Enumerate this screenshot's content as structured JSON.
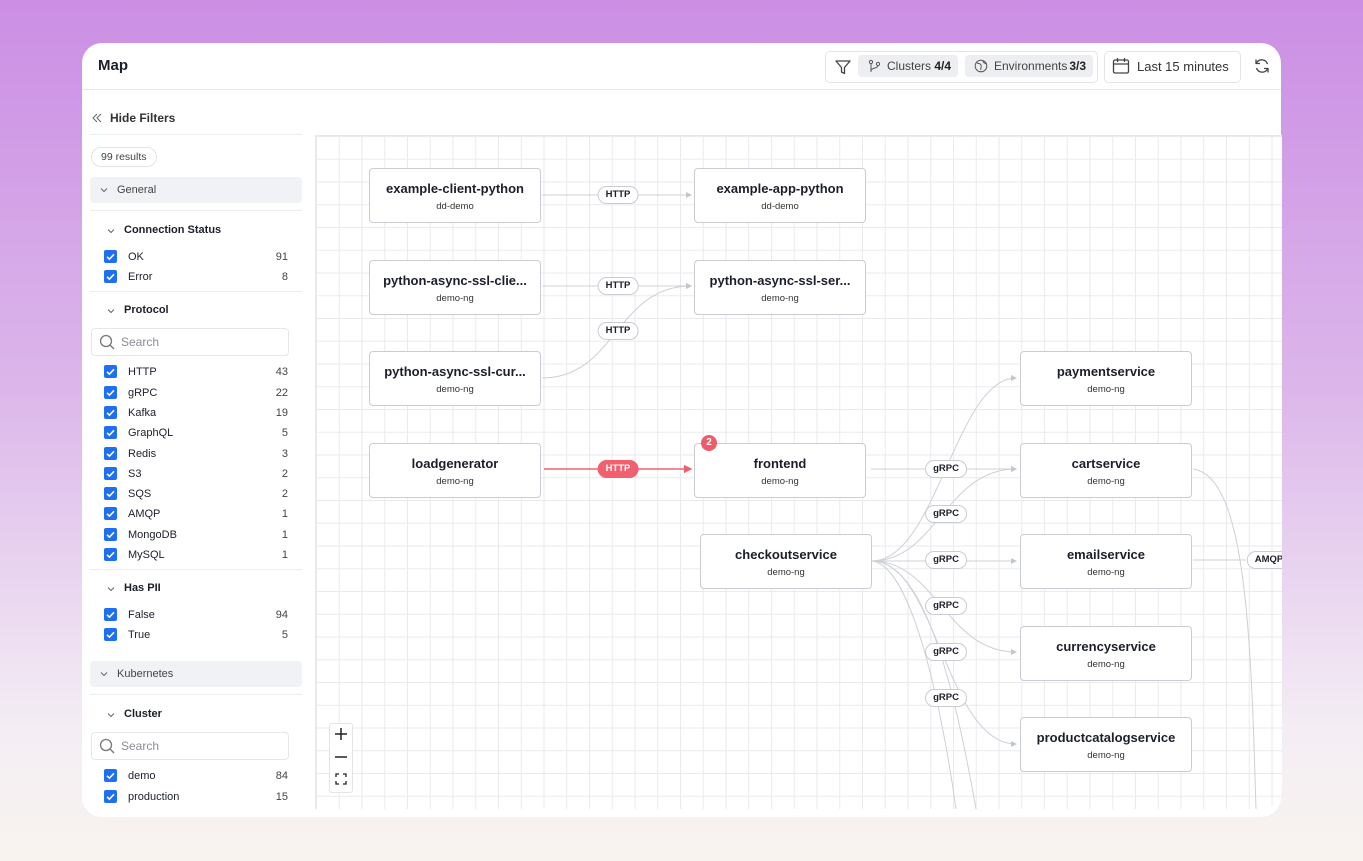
{
  "header": {
    "title": "Map",
    "filters": [
      {
        "label": "Clusters",
        "value": "4/4"
      },
      {
        "label": "Environments",
        "value": "3/3"
      }
    ],
    "time_range": "Last 15 minutes"
  },
  "sidebar": {
    "toggle": "Hide Filters",
    "results": "99 results",
    "groups": [
      {
        "title": "General",
        "sections": [
          {
            "title": "Connection Status",
            "options": [
              {
                "label": "OK",
                "count": 91
              },
              {
                "label": "Error",
                "count": 8
              }
            ]
          },
          {
            "title": "Protocol",
            "search": "Search",
            "options": [
              {
                "label": "HTTP",
                "count": 43
              },
              {
                "label": "gRPC",
                "count": 22
              },
              {
                "label": "Kafka",
                "count": 19
              },
              {
                "label": "GraphQL",
                "count": 5
              },
              {
                "label": "Redis",
                "count": 3
              },
              {
                "label": "S3",
                "count": 2
              },
              {
                "label": "SQS",
                "count": 2
              },
              {
                "label": "AMQP",
                "count": 1
              },
              {
                "label": "MongoDB",
                "count": 1
              },
              {
                "label": "MySQL",
                "count": 1
              }
            ]
          },
          {
            "title": "Has PII",
            "options": [
              {
                "label": "False",
                "count": 94
              },
              {
                "label": "True",
                "count": 5
              }
            ]
          }
        ]
      },
      {
        "title": "Kubernetes",
        "sections": [
          {
            "title": "Cluster",
            "search": "Search",
            "options": [
              {
                "label": "demo",
                "count": 84
              },
              {
                "label": "production",
                "count": 15
              }
            ]
          }
        ]
      }
    ]
  },
  "map": {
    "nodes": [
      {
        "name": "example-client-python",
        "namespace": "dd-demo"
      },
      {
        "name": "example-app-python",
        "namespace": "dd-demo"
      },
      {
        "name": "python-async-ssl-clie...",
        "namespace": "demo-ng"
      },
      {
        "name": "python-async-ssl-ser...",
        "namespace": "demo-ng"
      },
      {
        "name": "python-async-ssl-cur...",
        "namespace": "demo-ng"
      },
      {
        "name": "loadgenerator",
        "namespace": "demo-ng"
      },
      {
        "name": "frontend",
        "namespace": "demo-ng",
        "badge": 2
      },
      {
        "name": "checkoutservice",
        "namespace": "demo-ng"
      },
      {
        "name": "paymentservice",
        "namespace": "demo-ng"
      },
      {
        "name": "cartservice",
        "namespace": "demo-ng"
      },
      {
        "name": "emailservice",
        "namespace": "demo-ng"
      },
      {
        "name": "currencyservice",
        "namespace": "demo-ng"
      },
      {
        "name": "productcatalogservice",
        "namespace": "demo-ng"
      }
    ],
    "edges": [
      {
        "label": "HTTP"
      },
      {
        "label": "HTTP"
      },
      {
        "label": "HTTP"
      },
      {
        "label": "HTTP",
        "color": "#f0606e"
      },
      {
        "label": "gRPC"
      },
      {
        "label": "gRPC"
      },
      {
        "label": "gRPC"
      },
      {
        "label": "gRPC"
      },
      {
        "label": "gRPC"
      },
      {
        "label": "gRPC"
      },
      {
        "label": "AMQP"
      }
    ]
  }
}
